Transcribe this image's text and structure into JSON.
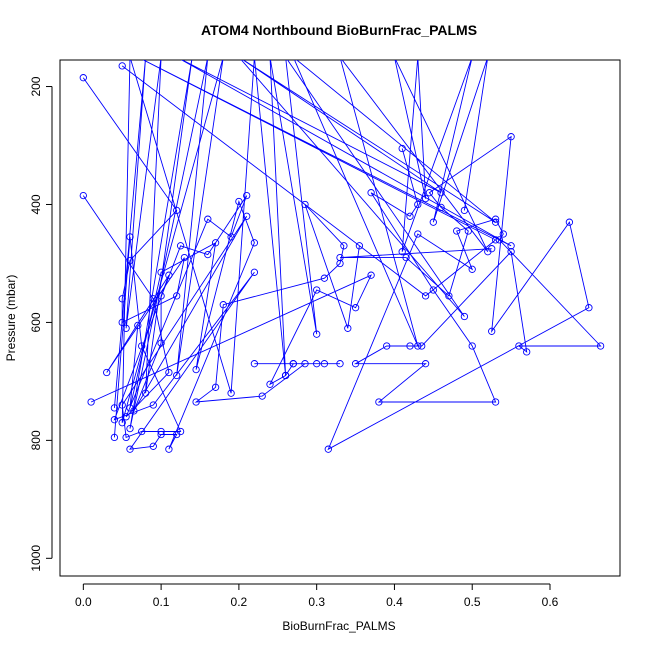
{
  "chart_data": {
    "type": "line",
    "title": "ATOM4 Northbound BioBurnFrac_PALMS",
    "xlabel": "BioBurnFrac_PALMS",
    "ylabel": "Pressure (mbar)",
    "xlim": [
      -0.03,
      0.69
    ],
    "ylim": [
      1030,
      155
    ],
    "y_reversed": true,
    "x_ticks": [
      0.0,
      0.1,
      0.2,
      0.3,
      0.4,
      0.5,
      0.6
    ],
    "x_tick_labels": [
      "0.0",
      "0.1",
      "0.2",
      "0.3",
      "0.4",
      "0.5",
      "0.6"
    ],
    "y_ticks": [
      200,
      400,
      600,
      800,
      1000
    ],
    "y_tick_labels": [
      "200",
      "400",
      "600",
      "800",
      "1000"
    ],
    "grid": false,
    "legend": "none",
    "series_color": "#0000ff",
    "series": [
      {
        "points": [
          [
            0.0,
            185
          ],
          [
            0.12,
            410
          ],
          [
            0.06,
            495
          ],
          [
            0.05,
            560
          ],
          [
            0.05,
            600
          ],
          [
            0.12,
            555
          ],
          [
            0.13,
            490
          ],
          [
            0.03,
            685
          ],
          [
            0.11,
            520
          ],
          [
            0.1,
            555
          ],
          [
            0.1,
            635
          ],
          [
            0.065,
            750
          ],
          [
            0.21,
            420
          ],
          [
            0.05,
            740
          ],
          [
            0.055,
            795
          ],
          [
            0.075,
            785
          ],
          [
            0.1,
            785
          ],
          [
            0.125,
            785
          ],
          [
            0.075,
            640
          ],
          [
            0.06,
            455
          ],
          [
            0.04,
            795
          ]
        ]
      },
      {
        "points": [
          [
            0.0,
            385
          ],
          [
            0.09,
            560
          ],
          [
            0.11,
            685
          ],
          [
            0.055,
            760
          ],
          [
            0.16,
            425
          ],
          [
            0.19,
            455
          ],
          [
            0.21,
            385
          ],
          [
            0.16,
            485
          ],
          [
            0.125,
            470
          ],
          [
            0.04,
            765
          ],
          [
            0.09,
            740
          ],
          [
            0.22,
            515
          ],
          [
            0.06,
            815
          ],
          [
            0.09,
            810
          ],
          [
            0.1,
            790
          ],
          [
            0.12,
            790
          ],
          [
            0.11,
            815
          ],
          [
            0.22,
            465
          ],
          [
            0.2,
            395
          ],
          [
            0.145,
            680
          ],
          [
            0.17,
            465
          ],
          [
            0.1,
            515
          ],
          [
            0.06,
            745
          ],
          [
            0.07,
            605
          ]
        ]
      },
      {
        "points": [
          [
            0.01,
            735
          ],
          [
            0.37,
            520
          ],
          [
            0.35,
            575
          ],
          [
            0.3,
            545
          ],
          [
            0.24,
            705
          ],
          [
            0.26,
            690
          ],
          [
            0.27,
            670
          ],
          [
            0.3,
            670
          ],
          [
            0.33,
            670
          ],
          [
            0.22,
            670
          ],
          [
            0.27,
            670
          ],
          [
            0.31,
            670
          ],
          [
            0.285,
            670
          ],
          [
            0.23,
            725
          ],
          [
            0.145,
            735
          ],
          [
            0.17,
            710
          ],
          [
            0.18,
            570
          ],
          [
            0.31,
            525
          ],
          [
            0.33,
            500
          ],
          [
            0.335,
            470
          ],
          [
            0.285,
            400
          ],
          [
            0.34,
            610
          ],
          [
            0.355,
            470
          ]
        ]
      },
      {
        "points": [
          [
            0.41,
            305
          ],
          [
            0.43,
            400
          ],
          [
            0.42,
            420
          ],
          [
            0.37,
            380
          ],
          [
            0.45,
            545
          ],
          [
            0.5,
            640
          ],
          [
            0.53,
            735
          ],
          [
            0.38,
            735
          ],
          [
            0.44,
            670
          ],
          [
            0.35,
            670
          ],
          [
            0.39,
            640
          ],
          [
            0.42,
            640
          ],
          [
            0.435,
            640
          ],
          [
            0.55,
            480
          ],
          [
            0.57,
            650
          ],
          [
            0.56,
            640
          ],
          [
            0.665,
            640
          ],
          [
            0.535,
            460
          ],
          [
            0.54,
            450
          ],
          [
            0.53,
            425
          ],
          [
            0.48,
            445
          ],
          [
            0.5,
            510
          ],
          [
            0.43,
            450
          ],
          [
            0.315,
            815
          ],
          [
            0.65,
            575
          ],
          [
            0.625,
            430
          ],
          [
            0.525,
            615
          ],
          [
            0.55,
            285
          ],
          [
            0.445,
            380
          ],
          [
            0.46,
            405
          ],
          [
            0.495,
            445
          ],
          [
            0.47,
            555
          ],
          [
            0.415,
            490
          ],
          [
            0.33,
            490
          ],
          [
            0.525,
            475
          ]
        ]
      },
      {
        "points": [
          [
            0.05,
            165
          ],
          [
            0.44,
            555
          ],
          [
            0.53,
            460
          ],
          [
            0.07,
            150
          ],
          [
            0.55,
            470
          ],
          [
            0.12,
            150
          ],
          [
            0.46,
            380
          ],
          [
            0.2,
            150
          ],
          [
            0.53,
            430
          ],
          [
            0.27,
            150
          ],
          [
            0.43,
            640
          ],
          [
            0.33,
            150
          ],
          [
            0.52,
            480
          ],
          [
            0.4,
            150
          ],
          [
            0.44,
            390
          ],
          [
            0.43,
            150
          ],
          [
            0.41,
            480
          ],
          [
            0.5,
            150
          ],
          [
            0.45,
            430
          ],
          [
            0.52,
            150
          ],
          [
            0.49,
            410
          ]
        ]
      },
      {
        "points": [
          [
            0.04,
            745
          ],
          [
            0.08,
            150
          ],
          [
            0.055,
            610
          ],
          [
            0.1,
            150
          ],
          [
            0.08,
            720
          ],
          [
            0.14,
            150
          ],
          [
            0.06,
            780
          ],
          [
            0.16,
            150
          ],
          [
            0.12,
            690
          ],
          [
            0.18,
            150
          ],
          [
            0.05,
            770
          ],
          [
            0.06,
            150
          ],
          [
            0.19,
            720
          ],
          [
            0.22,
            150
          ],
          [
            0.26,
            690
          ],
          [
            0.24,
            150
          ],
          [
            0.3,
            620
          ],
          [
            0.26,
            150
          ],
          [
            0.49,
            590
          ],
          [
            0.2,
            150
          ]
        ]
      }
    ]
  }
}
